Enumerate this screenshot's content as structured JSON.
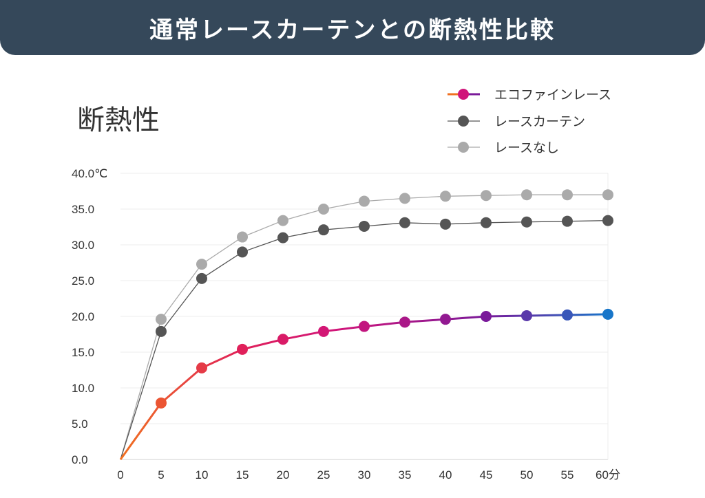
{
  "banner": {
    "title": "通常レースカーテンとの断熱性比較"
  },
  "chart_data": {
    "type": "line",
    "title": "断熱性",
    "xlabel": "",
    "ylabel": "",
    "x": [
      0,
      5,
      10,
      15,
      20,
      25,
      30,
      35,
      40,
      45,
      50,
      55,
      60
    ],
    "x_tick_labels": [
      "0",
      "5",
      "10",
      "15",
      "20",
      "25",
      "30",
      "35",
      "40",
      "45",
      "50",
      "55",
      "60分"
    ],
    "y_tick_labels": [
      "0.0",
      "5.0",
      "10.0",
      "15.0",
      "20.0",
      "25.0",
      "30.0",
      "35.0",
      "40.0℃"
    ],
    "ylim": [
      0,
      40
    ],
    "xlim": [
      0,
      60
    ],
    "grid": true,
    "legend": "top-right",
    "series": [
      {
        "name": "エコファインレース",
        "values": [
          0,
          7.9,
          12.8,
          15.4,
          16.8,
          17.9,
          18.6,
          19.2,
          19.6,
          20.0,
          20.1,
          20.2,
          20.3
        ],
        "color_start": "#f07020",
        "color_mid": "#d0157a",
        "color_mid2": "#7a1a9a",
        "color_end": "#1876c9"
      },
      {
        "name": "レースカーテン",
        "values": [
          0,
          17.9,
          25.3,
          29.0,
          31.0,
          32.1,
          32.6,
          33.1,
          32.9,
          33.1,
          33.2,
          33.3,
          33.4
        ],
        "color": "#555555"
      },
      {
        "name": "レースなし",
        "values": [
          0,
          19.6,
          27.3,
          31.1,
          33.4,
          35.0,
          36.1,
          36.5,
          36.8,
          36.9,
          37.0,
          37.0,
          37.0
        ],
        "color": "#aaaaaa"
      }
    ]
  }
}
